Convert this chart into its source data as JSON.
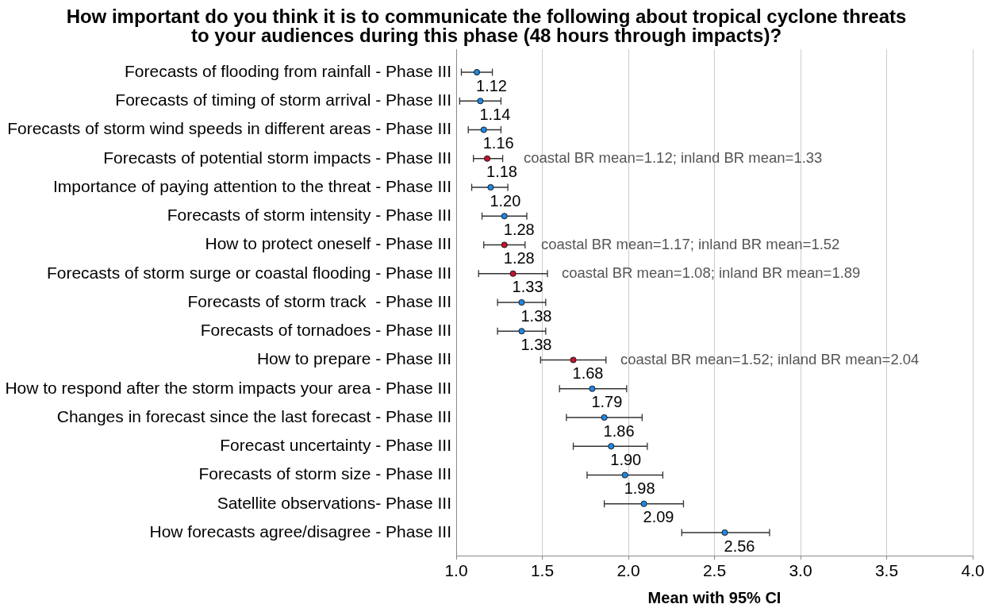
{
  "chart_data": {
    "type": "scatter",
    "orientation": "horizontal",
    "title": "How important do you think it is to communicate the following about tropical cyclone threats to your audiences during this phase (48 hours through impacts)?",
    "xlabel": "Mean with 95% CI",
    "categories": [
      "Forecasts of flooding from rainfall - Phase III",
      "Forecasts of timing of storm arrival - Phase III",
      "Forecasts of storm wind speeds in different areas - Phase III",
      "Forecasts of potential storm impacts - Phase III",
      "Importance of paying attention to the threat - Phase III",
      "Forecasts of storm intensity - Phase III",
      "How to protect oneself - Phase III",
      "Forecasts of storm surge or coastal flooding - Phase III",
      "Forecasts of storm track  - Phase III",
      "Forecasts of tornadoes - Phase III",
      "How to prepare - Phase III",
      "How to respond after the storm impacts your area - Phase III",
      "Changes in forecast since the last forecast - Phase III",
      "Forecast uncertainty - Phase III",
      "Forecasts of storm size - Phase III",
      "Satellite observations- Phase III",
      "How forecasts agree/disagree - Phase III"
    ],
    "values": [
      1.12,
      1.14,
      1.16,
      1.18,
      1.2,
      1.28,
      1.28,
      1.33,
      1.38,
      1.38,
      1.68,
      1.79,
      1.86,
      1.9,
      1.98,
      2.09,
      2.56
    ],
    "value_labels": [
      "1.12",
      "1.14",
      "1.16",
      "1.18",
      "1.20",
      "1.28",
      "1.28",
      "1.33",
      "1.38",
      "1.38",
      "1.68",
      "1.79",
      "1.86",
      "1.90",
      "1.98",
      "2.09",
      "2.56"
    ],
    "errors": [
      [
        1.03,
        1.21
      ],
      [
        1.02,
        1.26
      ],
      [
        1.07,
        1.26
      ],
      [
        1.1,
        1.27
      ],
      [
        1.09,
        1.3
      ],
      [
        1.15,
        1.41
      ],
      [
        1.16,
        1.4
      ],
      [
        1.13,
        1.53
      ],
      [
        1.24,
        1.52
      ],
      [
        1.24,
        1.52
      ],
      [
        1.49,
        1.87
      ],
      [
        1.6,
        1.99
      ],
      [
        1.64,
        2.08
      ],
      [
        1.68,
        2.11
      ],
      [
        1.76,
        2.2
      ],
      [
        1.86,
        2.32
      ],
      [
        2.31,
        2.82
      ]
    ],
    "colors": [
      "#1e88e5",
      "#1e88e5",
      "#1e88e5",
      "#c8102e",
      "#1e88e5",
      "#1e88e5",
      "#c8102e",
      "#c8102e",
      "#1e88e5",
      "#1e88e5",
      "#c8102e",
      "#1e88e5",
      "#1e88e5",
      "#1e88e5",
      "#1e88e5",
      "#1e88e5",
      "#1e88e5"
    ],
    "marker": "circle",
    "xlim": [
      1,
      4
    ],
    "xticks": [
      {
        "value": 1,
        "label": "1.0"
      },
      {
        "value": 1.5,
        "label": "1.5"
      },
      {
        "value": 2,
        "label": "2.0"
      },
      {
        "value": 2.5,
        "label": "2.5"
      },
      {
        "value": 3,
        "label": "3.0"
      },
      {
        "value": 3.5,
        "label": "3.5"
      },
      {
        "value": 4,
        "label": "4.0"
      }
    ],
    "grid": "x",
    "annotations": [
      "coastal BR mean=1.12; inland BR mean=1.33",
      "coastal BR mean=1.17; inland BR mean=1.52",
      "coastal BR mean=1.08; inland BR mean=1.89",
      "coastal BR mean=1.52; inland BR mean=2.04"
    ]
  }
}
